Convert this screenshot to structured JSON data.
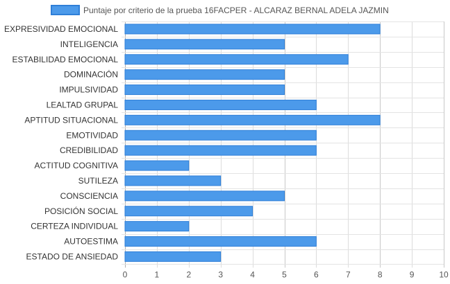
{
  "chart_data": {
    "type": "bar",
    "orientation": "horizontal",
    "title": "",
    "xlabel": "",
    "ylabel": "",
    "xlim": [
      0,
      10
    ],
    "x_ticks": [
      0,
      1,
      2,
      3,
      4,
      5,
      6,
      7,
      8,
      9,
      10
    ],
    "grid": true,
    "legend": "top",
    "categories": [
      "EXPRESIVIDAD EMOCIONAL",
      "INTELIGENCIA",
      "ESTABILIDAD EMOCIONAL",
      "DOMINACIÓN",
      "IMPULSIVIDAD",
      "LEALTAD GRUPAL",
      "APTITUD SITUACIONAL",
      "EMOTIVIDAD",
      "CREDIBILIDAD",
      "ACTITUD COGNITIVA",
      "SUTILEZA",
      "CONSCIENCIA",
      "POSICIÓN SOCIAL",
      "CERTEZA INDIVIDUAL",
      "AUTOESTIMA",
      "ESTADO DE ANSIEDAD"
    ],
    "series": [
      {
        "name": "Puntaje por criterio de la prueba 16FACPER - ALCARAZ BERNAL ADELA JAZMIN",
        "values": [
          8,
          5,
          7,
          5,
          5,
          6,
          8,
          6,
          6,
          2,
          3,
          5,
          4,
          2,
          6,
          3
        ],
        "color": "#4c9aea",
        "border_color": "#2f7fd8"
      }
    ]
  }
}
